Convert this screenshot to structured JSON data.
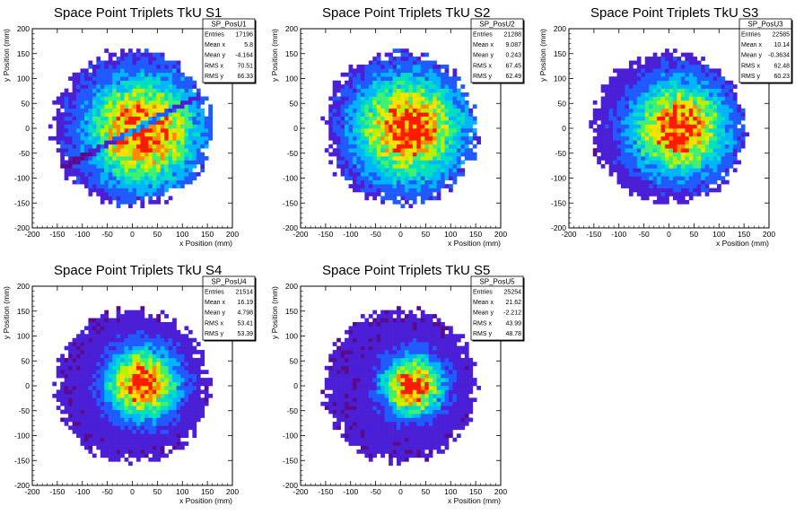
{
  "chart_data": [
    {
      "type": "heatmap",
      "title": "Space Point Triplets TkU S1",
      "xlabel": "x Position (mm)",
      "ylabel": "y Position (mm)",
      "xlim": [
        -200,
        200
      ],
      "ylim": [
        -200,
        200
      ],
      "xticks": [
        -200,
        -150,
        -100,
        -50,
        0,
        50,
        100,
        150,
        200
      ],
      "yticks": [
        -200,
        -150,
        -100,
        -50,
        0,
        50,
        100,
        150,
        200
      ],
      "stats": {
        "name": "SP_PosU1",
        "rows": [
          {
            "label": "Entries",
            "value": "17196"
          },
          {
            "label": "Mean x",
            "value": "5.8"
          },
          {
            "label": "Mean y",
            "value": "-4.164"
          },
          {
            "label": "RMS x",
            "value": "70.51"
          },
          {
            "label": "RMS y",
            "value": "66.33"
          }
        ]
      },
      "dist": {
        "radius": 160,
        "cx": 20,
        "cy": -5,
        "sigma": 70,
        "band_angle_deg": 28
      }
    },
    {
      "type": "heatmap",
      "title": "Space Point Triplets TkU S2",
      "xlabel": "x Position (mm)",
      "ylabel": "y Position (mm)",
      "xlim": [
        -200,
        200
      ],
      "ylim": [
        -200,
        200
      ],
      "xticks": [
        -200,
        -150,
        -100,
        -50,
        0,
        50,
        100,
        150,
        200
      ],
      "yticks": [
        -200,
        -150,
        -100,
        -50,
        0,
        50,
        100,
        150,
        200
      ],
      "stats": {
        "name": "SP_PosU2",
        "rows": [
          {
            "label": "Entries",
            "value": "21288"
          },
          {
            "label": "Mean x",
            "value": "9.087"
          },
          {
            "label": "Mean y",
            "value": "0.243"
          },
          {
            "label": "RMS x",
            "value": "67.45"
          },
          {
            "label": "RMS y",
            "value": "62.49"
          }
        ]
      },
      "dist": {
        "radius": 155,
        "cx": 15,
        "cy": 0,
        "sigma": 68
      }
    },
    {
      "type": "heatmap",
      "title": "Space Point Triplets TkU S3",
      "xlabel": "x Position (mm)",
      "ylabel": "y Position (mm)",
      "xlim": [
        -200,
        200
      ],
      "ylim": [
        -200,
        200
      ],
      "xticks": [
        -200,
        -150,
        -100,
        -50,
        0,
        50,
        100,
        150,
        200
      ],
      "yticks": [
        -200,
        -150,
        -100,
        -50,
        0,
        50,
        100,
        150,
        200
      ],
      "stats": {
        "name": "SP_PosU3",
        "rows": [
          {
            "label": "Entries",
            "value": "22585"
          },
          {
            "label": "Mean x",
            "value": "10.14"
          },
          {
            "label": "Mean y",
            "value": "-0.3634"
          },
          {
            "label": "RMS x",
            "value": "62.48"
          },
          {
            "label": "RMS y",
            "value": "60.23"
          }
        ]
      },
      "dist": {
        "radius": 155,
        "cx": 20,
        "cy": 0,
        "sigma": 60
      }
    },
    {
      "type": "heatmap",
      "title": "Space Point Triplets TkU S4",
      "xlabel": "x Position (mm)",
      "ylabel": "y Position (mm)",
      "xlim": [
        -200,
        200
      ],
      "ylim": [
        -200,
        200
      ],
      "xticks": [
        -200,
        -150,
        -100,
        -50,
        0,
        50,
        100,
        150,
        200
      ],
      "yticks": [
        -200,
        -150,
        -100,
        -50,
        0,
        50,
        100,
        150,
        200
      ],
      "stats": {
        "name": "SP_PosU4",
        "rows": [
          {
            "label": "Entries",
            "value": "21514"
          },
          {
            "label": "Mean x",
            "value": "16.19"
          },
          {
            "label": "Mean y",
            "value": "4.798"
          },
          {
            "label": "RMS x",
            "value": "53.41"
          },
          {
            "label": "RMS y",
            "value": "53.39"
          }
        ]
      },
      "dist": {
        "radius": 155,
        "cx": 20,
        "cy": 5,
        "sigma": 45
      }
    },
    {
      "type": "heatmap",
      "title": "Space Point Triplets TkU S5",
      "xlabel": "x Position (mm)",
      "ylabel": "y Position (mm)",
      "xlim": [
        -200,
        200
      ],
      "ylim": [
        -200,
        200
      ],
      "xticks": [
        -200,
        -150,
        -100,
        -50,
        0,
        50,
        100,
        150,
        200
      ],
      "yticks": [
        -200,
        -150,
        -100,
        -50,
        0,
        50,
        100,
        150,
        200
      ],
      "stats": {
        "name": "SP_PosU5",
        "rows": [
          {
            "label": "Entries",
            "value": "25254"
          },
          {
            "label": "Mean x",
            "value": "21.62"
          },
          {
            "label": "Mean y",
            "value": "-2.212"
          },
          {
            "label": "RMS x",
            "value": "43.99"
          },
          {
            "label": "RMS y",
            "value": "48.78"
          }
        ]
      },
      "dist": {
        "radius": 155,
        "cx": 25,
        "cy": 0,
        "sigma": 38
      }
    }
  ],
  "colors": {
    "palette": [
      "#5a0a8c",
      "#4a1fd6",
      "#1f5bff",
      "#00b4ff",
      "#00e0c0",
      "#40f070",
      "#b8f000",
      "#ffe000",
      "#ff8a00",
      "#ff1a00"
    ],
    "axis": "#000000",
    "background": "#ffffff"
  }
}
